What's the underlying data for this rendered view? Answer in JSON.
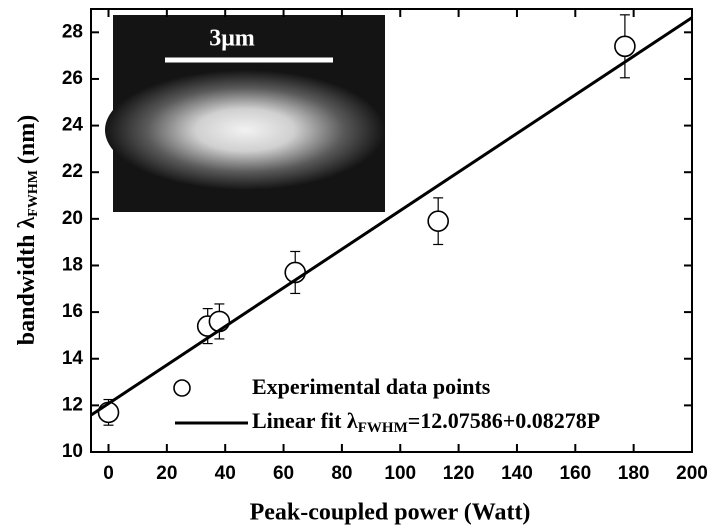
{
  "chart_data": {
    "type": "scatter",
    "xlabel": "Peak-coupled power (Watt)",
    "ylabel": [
      "bandwidth λ",
      "FWHM",
      " (nm)"
    ],
    "inset_label": "3μm",
    "xlim": [
      -6,
      200
    ],
    "ylim": [
      10,
      29
    ],
    "xticks": [
      0,
      20,
      40,
      60,
      80,
      100,
      120,
      140,
      160,
      180,
      200
    ],
    "yticks": [
      10,
      12,
      14,
      16,
      18,
      20,
      22,
      24,
      26,
      28
    ],
    "series": [
      {
        "name": "Experimental data points",
        "color": "#000000",
        "marker": "open-circle",
        "x": [
          0,
          34,
          38,
          64,
          113,
          177
        ],
        "values": [
          11.7,
          15.4,
          15.6,
          17.7,
          19.9,
          27.4
        ],
        "errors": [
          0.55,
          0.75,
          0.75,
          0.9,
          1.0,
          1.35
        ]
      },
      {
        "name": [
          "Linear fit λ",
          "FWHM",
          "=12.07586+0.08278P"
        ],
        "color": "#000000",
        "marker": "line",
        "x": [
          -6,
          200
        ],
        "values": [
          11.58,
          28.63
        ]
      }
    ]
  }
}
